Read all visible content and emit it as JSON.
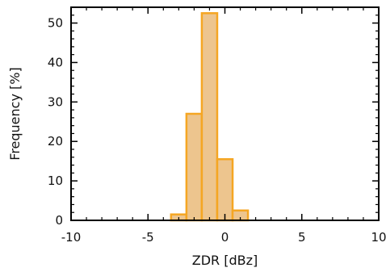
{
  "chart_data": {
    "type": "bar",
    "title": "",
    "xlabel": "ZDR [dBz]",
    "ylabel": "Frequency [%]",
    "xlim": [
      -10,
      10
    ],
    "ylim": [
      0,
      54
    ],
    "xticks": [
      -10,
      -5,
      0,
      5,
      10
    ],
    "yticks": [
      0,
      10,
      20,
      30,
      40,
      50
    ],
    "bins": [
      {
        "x0": -3.5,
        "x1": -2.5,
        "value": 1.5
      },
      {
        "x0": -2.5,
        "x1": -1.5,
        "value": 27
      },
      {
        "x0": -1.5,
        "x1": -0.5,
        "value": 52.5
      },
      {
        "x0": -0.5,
        "x1": 0.5,
        "value": 15.5
      },
      {
        "x0": 0.5,
        "x1": 1.5,
        "value": 2.5
      }
    ],
    "colors": {
      "bar_fill": "#EDC58E",
      "bar_stroke": "#F5A623",
      "axis": "#000000"
    },
    "grid": false
  }
}
